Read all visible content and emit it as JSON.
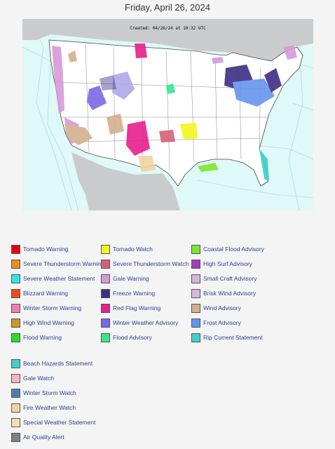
{
  "page": {
    "title": "Friday, April 26, 2024"
  },
  "map": {
    "created_label": "Created: 04/26/24 at 10:32 UTC"
  },
  "legend": [
    {
      "label": "Tornado Warning",
      "color": "#e8000b"
    },
    {
      "label": "Severe Thunderstorm Warning",
      "color": "#f08c1a"
    },
    {
      "label": "Severe Weather Statement",
      "color": "#2ee8e8"
    },
    {
      "label": "Blizzard Warning",
      "color": "#f04a1a"
    },
    {
      "label": "Winter Storm Warning",
      "color": "#f27db7"
    },
    {
      "label": "High Wind Warning",
      "color": "#c9972c"
    },
    {
      "label": "Flood Warning",
      "color": "#22e022"
    },
    {
      "label": "Tornado Watch",
      "color": "#f5f51e"
    },
    {
      "label": "Severe Thunderstorm Watch",
      "color": "#d6607c"
    },
    {
      "label": "Gale Warning",
      "color": "#d69ad9"
    },
    {
      "label": "Freeze Warning",
      "color": "#3d2f85"
    },
    {
      "label": "Red Flag Warning",
      "color": "#e81f8c"
    },
    {
      "label": "Winter Weather Advisory",
      "color": "#7b68e6"
    },
    {
      "label": "Flood Advisory",
      "color": "#34e88a"
    },
    {
      "label": "Coastal Flood Advisory",
      "color": "#7ce82c"
    },
    {
      "label": "High Surf Advisory",
      "color": "#a23bbd"
    },
    {
      "label": "Small Craft Advisory",
      "color": "#d2b8d6"
    },
    {
      "label": "Brisk Wind Advisory",
      "color": "#d6b8d8"
    },
    {
      "label": "Wind Advisory",
      "color": "#d2b08c"
    },
    {
      "label": "Frost Advisory",
      "color": "#6495ed"
    },
    {
      "label": "Rip Current Statement",
      "color": "#3fd0c8"
    },
    {
      "label": "Beach Hazards Statement",
      "color": "#3fd0c8"
    },
    {
      "label": "Gale Watch",
      "color": "#f2b6c4"
    },
    {
      "label": "Winter Storm Watch",
      "color": "#4a7fb5"
    },
    {
      "label": "Fire Weather Watch",
      "color": "#f3d2a2"
    },
    {
      "label": "Special Weather Statement",
      "color": "#f5deb8"
    },
    {
      "label": "Air Quality Alert",
      "color": "#808080"
    }
  ]
}
